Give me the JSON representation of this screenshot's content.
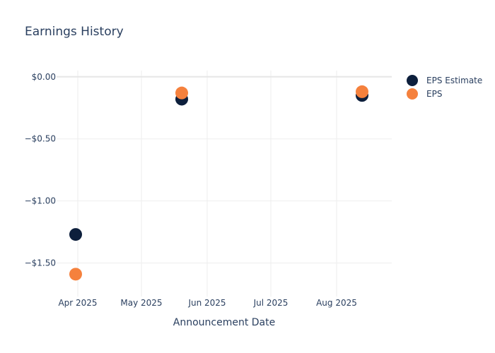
{
  "chart_data": {
    "type": "scatter",
    "title": "Earnings History",
    "xlabel": "Announcement Date",
    "ylabel": "",
    "x_ticks": [
      {
        "date": "2025-04-01",
        "label": "Apr 2025"
      },
      {
        "date": "2025-05-01",
        "label": "May 2025"
      },
      {
        "date": "2025-06-01",
        "label": "Jun 2025"
      },
      {
        "date": "2025-07-01",
        "label": "Jul 2025"
      },
      {
        "date": "2025-08-01",
        "label": "Aug 2025"
      }
    ],
    "xlim": [
      "2025-03-22",
      "2025-08-27"
    ],
    "y_ticks": [
      {
        "value": 0,
        "label": "$0.00"
      },
      {
        "value": -0.5,
        "label": "−$0.50"
      },
      {
        "value": -1.0,
        "label": "−$1.00"
      },
      {
        "value": -1.5,
        "label": "−$1.50"
      }
    ],
    "ylim": [
      -1.77,
      0.05
    ],
    "grid": true,
    "legend_position": "top-right",
    "series": [
      {
        "name": "EPS Estimate",
        "color": "#0d1f3c",
        "points": [
          {
            "x": "2025-03-31",
            "y": -1.27
          },
          {
            "x": "2025-05-20",
            "y": -0.18
          },
          {
            "x": "2025-08-13",
            "y": -0.15
          }
        ]
      },
      {
        "name": "EPS",
        "color": "#f5813d",
        "points": [
          {
            "x": "2025-03-31",
            "y": -1.59
          },
          {
            "x": "2025-05-20",
            "y": -0.13
          },
          {
            "x": "2025-08-13",
            "y": -0.12
          }
        ]
      }
    ]
  }
}
